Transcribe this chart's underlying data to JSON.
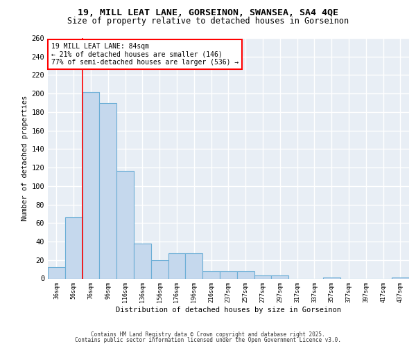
{
  "title_line1": "19, MILL LEAT LANE, GORSEINON, SWANSEA, SA4 4QE",
  "title_line2": "Size of property relative to detached houses in Gorseinon",
  "xlabel": "Distribution of detached houses by size in Gorseinon",
  "ylabel": "Number of detached properties",
  "categories": [
    "36sqm",
    "56sqm",
    "76sqm",
    "96sqm",
    "116sqm",
    "136sqm",
    "156sqm",
    "176sqm",
    "196sqm",
    "216sqm",
    "237sqm",
    "257sqm",
    "277sqm",
    "297sqm",
    "317sqm",
    "337sqm",
    "357sqm",
    "377sqm",
    "397sqm",
    "417sqm",
    "437sqm"
  ],
  "values": [
    12,
    66,
    202,
    190,
    116,
    38,
    20,
    27,
    27,
    8,
    8,
    8,
    3,
    3,
    0,
    0,
    1,
    0,
    0,
    0,
    1
  ],
  "bar_color": "#c5d8ed",
  "bar_edge_color": "#6baed6",
  "red_line_x": 2,
  "annotation_text": "19 MILL LEAT LANE: 84sqm\n← 21% of detached houses are smaller (146)\n77% of semi-detached houses are larger (536) →",
  "ylim": [
    0,
    260
  ],
  "yticks": [
    0,
    20,
    40,
    60,
    80,
    100,
    120,
    140,
    160,
    180,
    200,
    220,
    240,
    260
  ],
  "background_color": "#e8eef5",
  "grid_color": "#ffffff",
  "footer_line1": "Contains HM Land Registry data © Crown copyright and database right 2025.",
  "footer_line2": "Contains public sector information licensed under the Open Government Licence v3.0."
}
